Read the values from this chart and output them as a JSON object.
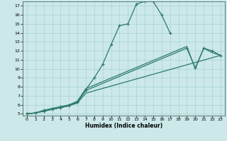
{
  "xlabel": "Humidex (Indice chaleur)",
  "bg_color": "#cce8e8",
  "line_color": "#2d7a6a",
  "xlim": [
    -0.5,
    23.5
  ],
  "ylim": [
    4.8,
    17.5
  ],
  "xticks": [
    0,
    1,
    2,
    3,
    4,
    5,
    6,
    7,
    8,
    9,
    10,
    11,
    12,
    13,
    14,
    15,
    16,
    17,
    18,
    19,
    20,
    21,
    22,
    23
  ],
  "yticks": [
    5,
    6,
    7,
    8,
    9,
    10,
    11,
    12,
    13,
    14,
    15,
    16,
    17
  ],
  "s1x": [
    0,
    1,
    2,
    3,
    4,
    5,
    6,
    7,
    8,
    9,
    10,
    11,
    12,
    13,
    14,
    15,
    16,
    17
  ],
  "s1y": [
    5.0,
    5.1,
    5.4,
    5.6,
    5.8,
    6.0,
    6.4,
    7.7,
    9.0,
    10.5,
    12.7,
    14.8,
    15.0,
    17.2,
    17.5,
    17.5,
    16.0,
    14.0
  ],
  "s2x": [
    0,
    1,
    2,
    3,
    4,
    5,
    6,
    7,
    23
  ],
  "s2y": [
    5.0,
    5.1,
    5.3,
    5.5,
    5.7,
    5.9,
    6.2,
    7.3,
    11.5
  ],
  "s3x": [
    0,
    1,
    2,
    3,
    4,
    5,
    6,
    7,
    19,
    20,
    21,
    22,
    23
  ],
  "s3y": [
    5.0,
    5.1,
    5.3,
    5.5,
    5.7,
    5.9,
    6.3,
    7.6,
    12.3,
    10.1,
    12.3,
    12.0,
    11.5
  ],
  "s4x": [
    0,
    1,
    2,
    3,
    4,
    5,
    6,
    7,
    19,
    20,
    21,
    22,
    23
  ],
  "s4y": [
    5.0,
    5.1,
    5.3,
    5.5,
    5.7,
    5.9,
    6.4,
    7.8,
    12.5,
    10.0,
    12.3,
    11.8,
    11.5
  ]
}
